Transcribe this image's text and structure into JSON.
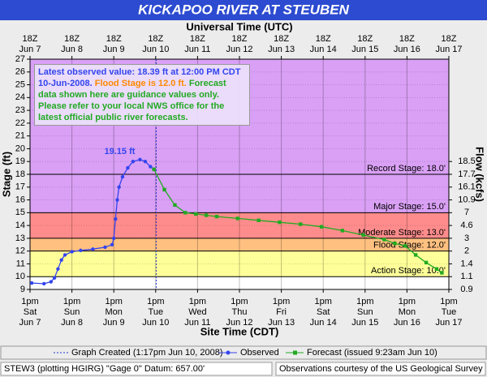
{
  "chart_data": {
    "type": "line",
    "title": "KICKAPOO RIVER  AT STEUBEN",
    "x2_title": "Universal Time (UTC)",
    "x_title": "Site Time (CDT)",
    "y_title": "Stage (ft)",
    "y2_title": "Flow (kcfs)",
    "xlim": [
      "Jun 7 13:00",
      "Jun 17 13:00"
    ],
    "xticks": [
      {
        "value": "Jun 7 13:00",
        "label": [
          "1pm",
          "Sat",
          "Jun 7"
        ]
      },
      {
        "value": "Jun 8 13:00",
        "label": [
          "1pm",
          "Sun",
          "Jun 8"
        ]
      },
      {
        "value": "Jun 9 13:00",
        "label": [
          "1pm",
          "Mon",
          "Jun 9"
        ]
      },
      {
        "value": "Jun 10 13:00",
        "label": [
          "1pm",
          "Tue",
          "Jun 10"
        ]
      },
      {
        "value": "Jun 11 13:00",
        "label": [
          "1pm",
          "Wed",
          "Jun 11"
        ]
      },
      {
        "value": "Jun 12 13:00",
        "label": [
          "1pm",
          "Thu",
          "Jun 12"
        ]
      },
      {
        "value": "Jun 13 13:00",
        "label": [
          "1pm",
          "Fri",
          "Jun 13"
        ]
      },
      {
        "value": "Jun 14 13:00",
        "label": [
          "1pm",
          "Sat",
          "Jun 14"
        ]
      },
      {
        "value": "Jun 15 13:00",
        "label": [
          "1pm",
          "Sun",
          "Jun 15"
        ]
      },
      {
        "value": "Jun 16 13:00",
        "label": [
          "1pm",
          "Mon",
          "Jun 16"
        ]
      },
      {
        "value": "Jun 17 13:00",
        "label": [
          "1pm",
          "Tue",
          "Jun 17"
        ]
      }
    ],
    "x2ticks": [
      {
        "value": "Jun 7 13:00",
        "label": [
          "18Z",
          "Jun 7"
        ]
      },
      {
        "value": "Jun 8 13:00",
        "label": [
          "18Z",
          "Jun 8"
        ]
      },
      {
        "value": "Jun 9 13:00",
        "label": [
          "18Z",
          "Jun 9"
        ]
      },
      {
        "value": "Jun 10 13:00",
        "label": [
          "18Z",
          "Jun 10"
        ]
      },
      {
        "value": "Jun 11 13:00",
        "label": [
          "18Z",
          "Jun 11"
        ]
      },
      {
        "value": "Jun 12 13:00",
        "label": [
          "18Z",
          "Jun 12"
        ]
      },
      {
        "value": "Jun 13 13:00",
        "label": [
          "18Z",
          "Jun 13"
        ]
      },
      {
        "value": "Jun 14 13:00",
        "label": [
          "18Z",
          "Jun 14"
        ]
      },
      {
        "value": "Jun 15 13:00",
        "label": [
          "18Z",
          "Jun 15"
        ]
      },
      {
        "value": "Jun 16 13:00",
        "label": [
          "18Z",
          "Jun 16"
        ]
      },
      {
        "value": "Jun 17 13:00",
        "label": [
          "18Z",
          "Jun 17"
        ]
      }
    ],
    "ylim": [
      9,
      27
    ],
    "yticks": [
      9,
      10,
      11,
      12,
      13,
      14,
      15,
      16,
      17,
      18,
      19,
      20,
      21,
      22,
      23,
      24,
      25,
      26,
      27
    ],
    "y2ticks": [
      0.9,
      1.1,
      1.4,
      2.0,
      3.0,
      4.6,
      7.0,
      10.9,
      16.1,
      17.7,
      18.5
    ],
    "y2_at_stage": [
      9,
      10,
      11,
      12,
      13,
      14,
      15,
      16,
      17,
      18,
      19
    ],
    "grid": true,
    "stages": [
      {
        "value": 10,
        "label": "Action Stage: 10.0'",
        "color": "#ffff99"
      },
      {
        "value": 12,
        "label": "Flood Stage: 12.0'",
        "color": "#ffc080"
      },
      {
        "value": 13,
        "label": "Moderate Stage: 13.0'",
        "color": "#ff8c8c"
      },
      {
        "value": 15,
        "label": "Major Stage: 15.0'",
        "color": "#d9a0f5"
      },
      {
        "value": 18,
        "label": "Record Stage: 18.0'",
        "color": "#d9a0f5"
      }
    ],
    "series": [
      {
        "name": "Observed",
        "color": "#3344ee",
        "x": [
          "Jun 7 14:00",
          "Jun 7 21:00",
          "Jun 8 01:00",
          "Jun 8 03:00",
          "Jun 8 05:00",
          "Jun 8 07:00",
          "Jun 8 09:00",
          "Jun 8 13:00",
          "Jun 8 18:00",
          "Jun 9 01:00",
          "Jun 9 08:00",
          "Jun 9 12:00",
          "Jun 9 13:00",
          "Jun 9 14:00",
          "Jun 9 15:00",
          "Jun 9 16:00",
          "Jun 9 18:00",
          "Jun 9 21:00",
          "Jun 10 00:00",
          "Jun 10 04:00",
          "Jun 10 07:00",
          "Jun 10 10:00",
          "Jun 10 12:00"
        ],
        "values": [
          9.5,
          9.45,
          9.6,
          9.9,
          10.6,
          11.3,
          11.7,
          11.95,
          12.05,
          12.15,
          12.3,
          12.5,
          13.0,
          14.5,
          16.0,
          17.0,
          17.8,
          18.5,
          19.0,
          19.15,
          19.0,
          18.6,
          18.39
        ]
      },
      {
        "name": "Forecast (issued 9:23am Jun 10)",
        "color": "#22aa22",
        "x": [
          "Jun 10 12:00",
          "Jun 10 18:00",
          "Jun 11 00:00",
          "Jun 11 06:00",
          "Jun 11 12:00",
          "Jun 11 18:00",
          "Jun 12 00:00",
          "Jun 12 12:00",
          "Jun 13 00:00",
          "Jun 13 12:00",
          "Jun 14 00:00",
          "Jun 14 12:00",
          "Jun 15 00:00",
          "Jun 15 12:00",
          "Jun 16 00:00",
          "Jun 16 06:00",
          "Jun 16 12:00",
          "Jun 16 18:00",
          "Jun 17 00:00",
          "Jun 17 06:00",
          "Jun 17 09:00"
        ],
        "values": [
          18.39,
          16.8,
          15.6,
          15.0,
          14.9,
          14.8,
          14.7,
          14.55,
          14.4,
          14.25,
          14.1,
          13.9,
          13.6,
          13.25,
          12.9,
          12.6,
          12.4,
          11.7,
          11.1,
          10.6,
          10.3
        ]
      }
    ],
    "peak": {
      "x": "Jun 10 04:00",
      "value": 19.15,
      "label": "19.15 ft"
    },
    "created": {
      "x": "Jun 10 13:17",
      "name": "Graph Created (1:17pm Jun 10, 2008)"
    },
    "info": {
      "observed": "Latest observed value: 18.39 ft at 12:00 PM CDT 10-Jun-2008.",
      "flood": "Flood Stage is 12.0 ft.",
      "note": "Forecast data shown here are guidance values only. Please refer to your local NWS office for the latest official public river forecasts."
    }
  },
  "footer": {
    "left": "STEW3 (plotting HGIRG)  \"Gage 0\" Datum: 657.00'",
    "right": "Observations courtesy of the  US Geological Survey"
  }
}
